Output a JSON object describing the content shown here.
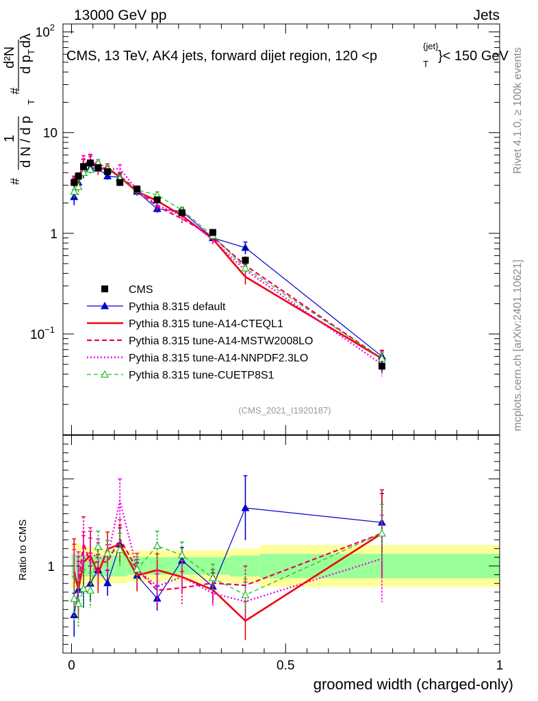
{
  "header": {
    "left": "13000 GeV pp",
    "right": "Jets"
  },
  "side": {
    "rivet": "Rivet 4.1.0, ≥ 100k events",
    "mcplots": "mcplots.cern.ch [arXiv:2401.10621]"
  },
  "chart_data": {
    "type": "line",
    "title": "CMS, 13 TeV, AK4 jets, forward dijet region, 120 <p",
    "title_sup": "{jet}",
    "title_sub": "T",
    "title_tail": "}< 150 GeV",
    "watermark": "(CMS_2021_I1920187)",
    "xlabel": "groomed width (charged-only)",
    "ylabel_main": {
      "frac_num": "1",
      "frac_den": "d N / d p",
      "frac_num_hash": "#",
      "d2N": "d²N",
      "d_pT": "d p",
      "dlambda": "dλ",
      "hash": "#",
      "sub_T": "T"
    },
    "ylabel_ratio": "Ratio to CMS",
    "xlim": [
      -0.02,
      1.0
    ],
    "ylim_main_log": [
      0.01,
      120
    ],
    "ylim_ratio": [
      0.5,
      1.75
    ],
    "xticks": [
      {
        "v": 0,
        "label": "0"
      },
      {
        "v": 0.5,
        "label": "0.5"
      },
      {
        "v": 1,
        "label": "1"
      }
    ],
    "yticks_main": [
      {
        "v": 100,
        "base": "10",
        "exp": "2"
      },
      {
        "v": 10,
        "base": "10",
        "exp": ""
      },
      {
        "v": 1,
        "base": "1",
        "exp": ""
      },
      {
        "v": 0.1,
        "base": "10",
        "exp": "−1"
      }
    ],
    "yticks_ratio": [
      {
        "v": 1,
        "label": "1"
      }
    ],
    "x": [
      0.006,
      0.016,
      0.028,
      0.044,
      0.062,
      0.084,
      0.113,
      0.153,
      0.2,
      0.258,
      0.33,
      0.406,
      0.725
    ],
    "series": [
      {
        "name": "CMS",
        "color": "#000000",
        "style": "data",
        "values": [
          3.2,
          3.7,
          4.6,
          5.0,
          4.5,
          4.1,
          3.2,
          2.75,
          2.15,
          1.6,
          1.02,
          0.54,
          0.048
        ],
        "errors": [
          0.3,
          0.3,
          0.35,
          0.4,
          0.35,
          0.3,
          0.25,
          0.2,
          0.15,
          0.12,
          0.08,
          0.05,
          0.006
        ]
      },
      {
        "name": "Pythia 8.315 default",
        "color": "#0000cc",
        "style": "solid-thin",
        "marker": "triangle-filled",
        "values": [
          2.3,
          3.2,
          4.0,
          4.5,
          4.4,
          3.7,
          3.6,
          2.6,
          1.75,
          1.65,
          0.9,
          0.72,
          0.06
        ],
        "errors": [
          0.4,
          0.5,
          0.5,
          0.5,
          0.4,
          0.3,
          0.3,
          0.2,
          0.15,
          0.12,
          0.08,
          0.1,
          0.008
        ]
      },
      {
        "name": "Pythia 8.315 tune-A14-CTEQL1",
        "color": "#ee0000",
        "style": "solid-thick",
        "marker": "none",
        "values": [
          3.1,
          3.2,
          4.7,
          5.3,
          4.3,
          4.5,
          3.6,
          2.6,
          2.1,
          1.5,
          0.88,
          0.37,
          0.057
        ],
        "errors": [
          0.6,
          0.6,
          0.7,
          0.7,
          0.5,
          0.4,
          0.35,
          0.25,
          0.2,
          0.15,
          0.08,
          0.06,
          0.012
        ]
      },
      {
        "name": "Pythia 8.315 tune-A14-MSTW2008LO",
        "color": "#ee0055",
        "style": "dashed",
        "marker": "none",
        "values": [
          3.0,
          3.3,
          5.2,
          5.1,
          4.6,
          4.2,
          3.7,
          2.7,
          1.85,
          1.4,
          0.92,
          0.48,
          0.057
        ],
        "errors": [
          0.6,
          0.6,
          0.7,
          0.7,
          0.5,
          0.4,
          0.35,
          0.25,
          0.2,
          0.15,
          0.08,
          0.06,
          0.012
        ]
      },
      {
        "name": "Pythia 8.315 tune-A14-NNPDF2.3LO",
        "color": "#ee00ee",
        "style": "dotted",
        "marker": "none",
        "values": [
          2.9,
          3.4,
          4.8,
          5.4,
          4.7,
          4.3,
          4.4,
          2.7,
          1.9,
          1.5,
          0.86,
          0.43,
          0.05
        ],
        "errors": [
          0.6,
          0.6,
          0.7,
          0.7,
          0.5,
          0.4,
          0.4,
          0.25,
          0.2,
          0.15,
          0.08,
          0.06,
          0.012
        ]
      },
      {
        "name": "Pythia 8.315 tune-CUETP8S1",
        "color": "#22bb22",
        "style": "dashed-thin",
        "marker": "triangle-open",
        "values": [
          2.6,
          2.9,
          4.0,
          4.3,
          5.0,
          4.4,
          3.5,
          2.7,
          2.4,
          1.7,
          0.95,
          0.45,
          0.057
        ],
        "errors": [
          0.4,
          0.5,
          0.5,
          0.5,
          0.4,
          0.3,
          0.3,
          0.2,
          0.18,
          0.12,
          0.08,
          0.05,
          0.008
        ]
      }
    ],
    "ratio_band": {
      "edges": [
        0.0,
        0.011,
        0.022,
        0.035,
        0.053,
        0.072,
        0.097,
        0.13,
        0.177,
        0.23,
        0.29,
        0.37,
        0.44,
        1.0
      ],
      "inner": [
        0.07,
        0.07,
        0.06,
        0.06,
        0.06,
        0.06,
        0.06,
        0.05,
        0.05,
        0.05,
        0.05,
        0.06,
        0.07
      ],
      "outer": [
        0.13,
        0.13,
        0.11,
        0.11,
        0.1,
        0.1,
        0.1,
        0.09,
        0.09,
        0.09,
        0.09,
        0.1,
        0.12
      ]
    }
  }
}
